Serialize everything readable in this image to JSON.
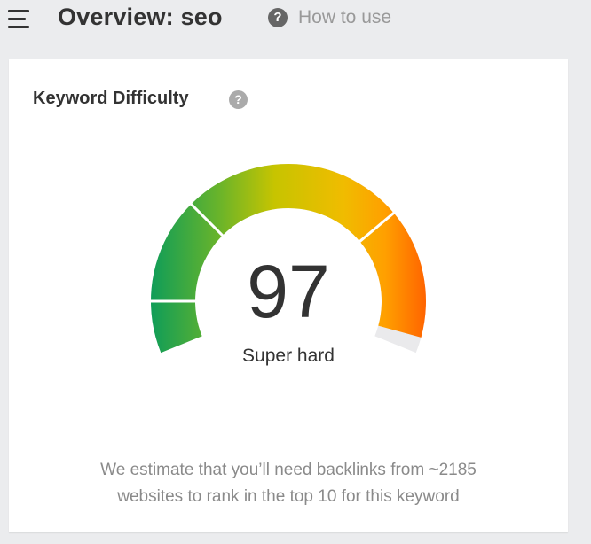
{
  "header": {
    "title": "Overview: seo",
    "help_icon": "question-circle-icon",
    "how_to_use": "How to use",
    "menu_icon": "hamburger-menu-icon"
  },
  "card": {
    "title": "Keyword Difficulty",
    "help_icon": "question-circle-icon",
    "score": "97",
    "score_value": 97,
    "score_max": 100,
    "rating": "Super hard",
    "description_line1": "We estimate that you’ll need backlinks from ~2185",
    "description_line2": "websites to rank in the top 10 for this keyword"
  },
  "colors": {
    "green": "#0f9d58",
    "yellow_green": "#a8c21e",
    "yellow": "#e6c200",
    "amber": "#f5b000",
    "orange": "#ff6400",
    "track": "#eaeaec"
  }
}
